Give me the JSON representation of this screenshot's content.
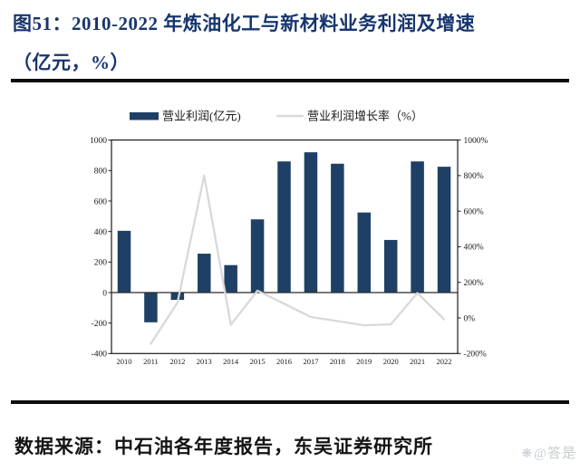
{
  "figure": {
    "title_line1": "图51：2010-2022 年炼油化工与新材料业务利润及增速",
    "title_line2": "（亿元，%）",
    "source_label": "数据来源：中石油各年度报告，东吴证券研究所",
    "watermark": "@答是"
  },
  "colors": {
    "title": "#17356e",
    "bar": "#1f4066",
    "line": "#d9d9d9",
    "axis": "#1a1a1a",
    "watermark": "#c7cdd4"
  },
  "chart_data": {
    "type": "combo-bar-line",
    "title": "图51：2010-2022 年炼油化工与新材料业务利润及增速（亿元，%）",
    "categories": [
      "2010",
      "2011",
      "2012",
      "2013",
      "2014",
      "2015",
      "2016",
      "2017",
      "2018",
      "2019",
      "2020",
      "2021",
      "2022"
    ],
    "series": [
      {
        "name": "营业利润(亿元)",
        "kind": "bar",
        "axis": "left",
        "color": "#1f4066",
        "values": [
          405,
          -195,
          -48,
          255,
          180,
          480,
          860,
          920,
          845,
          525,
          345,
          860,
          825
        ]
      },
      {
        "name": "营业利润增长率（%）",
        "kind": "line",
        "axis": "right",
        "color": "#d9d9d9",
        "values": [
          null,
          -145,
          85,
          800,
          -38,
          153,
          80,
          5,
          -18,
          -41,
          -36,
          140,
          -8
        ]
      }
    ],
    "left_axis": {
      "min": -400,
      "max": 1000,
      "step": 200,
      "ticks": [
        1000,
        800,
        600,
        400,
        200,
        0,
        -200,
        -400
      ],
      "tick_suffix": ""
    },
    "right_axis": {
      "min": -200,
      "max": 1000,
      "step": 200,
      "ticks": [
        1000,
        800,
        600,
        400,
        200,
        0,
        -200
      ],
      "tick_suffix": "%"
    },
    "legend_position": "top",
    "grid": false
  }
}
